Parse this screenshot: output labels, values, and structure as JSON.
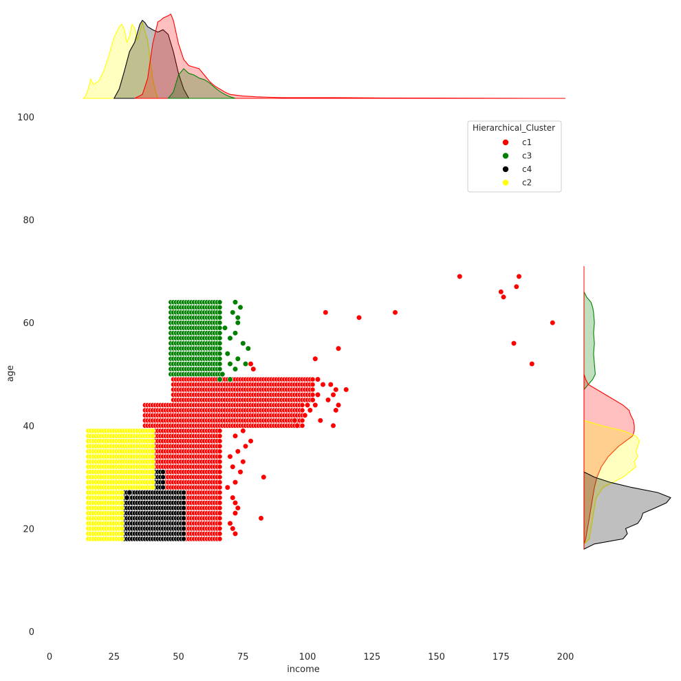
{
  "chart_data": {
    "type": "scatter",
    "xlabel": "income",
    "ylabel": "age",
    "xlim": [
      0,
      200
    ],
    "ylim": [
      0,
      100
    ],
    "x_ticks": [
      0,
      25,
      50,
      75,
      100,
      125,
      150,
      175,
      200
    ],
    "y_ticks": [
      0,
      20,
      40,
      60,
      80,
      100
    ],
    "grid": false,
    "legend": {
      "title": "Hierarchical_Cluster",
      "placement": "top-right"
    },
    "series": [
      {
        "name": "c1",
        "color": "#ff0000",
        "blocks": [
          {
            "age_min": 18,
            "age_max": 39,
            "income_min": 40,
            "income_max": 66
          },
          {
            "age_min": 40,
            "age_max": 44,
            "income_min": 37,
            "income_max": 98
          },
          {
            "age_min": 45,
            "age_max": 49,
            "income_min": 48,
            "income_max": 102
          }
        ],
        "points": [
          [
            159,
            69
          ],
          [
            182,
            69
          ],
          [
            181,
            67
          ],
          [
            175,
            66
          ],
          [
            176,
            65
          ],
          [
            107,
            62
          ],
          [
            134,
            62
          ],
          [
            120,
            61
          ],
          [
            195,
            60
          ],
          [
            180,
            56
          ],
          [
            112,
            55
          ],
          [
            103,
            53
          ],
          [
            187,
            52
          ],
          [
            115,
            47
          ],
          [
            111,
            47
          ],
          [
            110,
            46
          ],
          [
            108,
            45
          ],
          [
            109,
            48
          ],
          [
            106,
            48
          ],
          [
            104,
            49
          ],
          [
            111,
            43
          ],
          [
            112,
            44
          ],
          [
            110,
            40
          ],
          [
            96,
            40
          ],
          [
            95,
            41
          ],
          [
            99,
            42
          ],
          [
            101,
            43
          ],
          [
            103,
            44
          ],
          [
            105,
            41
          ],
          [
            100,
            44
          ],
          [
            102,
            45
          ],
          [
            104,
            46
          ],
          [
            83,
            30
          ],
          [
            82,
            22
          ],
          [
            72,
            19
          ],
          [
            71,
            20
          ],
          [
            70,
            21
          ],
          [
            72,
            23
          ],
          [
            73,
            24
          ],
          [
            72,
            25
          ],
          [
            71,
            26
          ],
          [
            72,
            29
          ],
          [
            74,
            31
          ],
          [
            75,
            33
          ],
          [
            73,
            35
          ],
          [
            76,
            36
          ],
          [
            78,
            37
          ],
          [
            72,
            38
          ],
          [
            75,
            39
          ],
          [
            78,
            52
          ],
          [
            79,
            51
          ],
          [
            70,
            34
          ],
          [
            71,
            32
          ],
          [
            69,
            28
          ]
        ]
      },
      {
        "name": "c3",
        "color": "#008000",
        "blocks": [
          {
            "age_min": 50,
            "age_max": 64,
            "income_min": 47,
            "income_max": 66
          }
        ],
        "points": [
          [
            72,
            64
          ],
          [
            74,
            63
          ],
          [
            71,
            62
          ],
          [
            73,
            61
          ],
          [
            73,
            60
          ],
          [
            68,
            59
          ],
          [
            72,
            58
          ],
          [
            70,
            57
          ],
          [
            75,
            56
          ],
          [
            77,
            55
          ],
          [
            69,
            54
          ],
          [
            73,
            53
          ],
          [
            70,
            52
          ],
          [
            76,
            52
          ],
          [
            72,
            51
          ],
          [
            67,
            50
          ],
          [
            66,
            49
          ],
          [
            70,
            49
          ]
        ]
      },
      {
        "name": "c4",
        "color": "#000000",
        "blocks": [
          {
            "age_min": 18,
            "age_max": 27,
            "income_min": 28,
            "income_max": 52
          },
          {
            "age_min": 28,
            "age_max": 31,
            "income_min": 38,
            "income_max": 44
          }
        ],
        "points": [
          [
            33,
            28
          ],
          [
            35,
            29
          ],
          [
            36,
            30
          ],
          [
            37,
            31
          ],
          [
            31,
            27
          ],
          [
            30,
            26
          ]
        ]
      },
      {
        "name": "c2",
        "color": "#ffff00",
        "blocks": [
          {
            "age_min": 18,
            "age_max": 39,
            "income_min": 15,
            "income_max": 28
          },
          {
            "age_min": 28,
            "age_max": 39,
            "income_min": 29,
            "income_max": 40
          }
        ],
        "points": []
      }
    ],
    "marginal_x_kde": [
      {
        "name": "c2",
        "color": "#ffff00",
        "points": [
          [
            13,
            0
          ],
          [
            14,
            0.03
          ],
          [
            15,
            0.12
          ],
          [
            16,
            0.25
          ],
          [
            17,
            0.18
          ],
          [
            19,
            0.22
          ],
          [
            21,
            0.35
          ],
          [
            23,
            0.55
          ],
          [
            25,
            0.78
          ],
          [
            27,
            0.92
          ],
          [
            28,
            0.95
          ],
          [
            29,
            0.88
          ],
          [
            30,
            0.72
          ],
          [
            31,
            0.8
          ],
          [
            32,
            0.95
          ],
          [
            33,
            0.9
          ],
          [
            34,
            0.75
          ],
          [
            35,
            0.85
          ],
          [
            36,
            0.98
          ],
          [
            37,
            0.85
          ],
          [
            38,
            0.75
          ],
          [
            39,
            0.5
          ],
          [
            40,
            0.25
          ],
          [
            41,
            0.1
          ],
          [
            42,
            0
          ]
        ]
      },
      {
        "name": "c4",
        "color": "#000000",
        "points": [
          [
            25,
            0
          ],
          [
            27,
            0.12
          ],
          [
            29,
            0.35
          ],
          [
            31,
            0.6
          ],
          [
            33,
            0.72
          ],
          [
            35,
            0.95
          ],
          [
            36,
            1.0
          ],
          [
            37,
            0.97
          ],
          [
            38,
            0.92
          ],
          [
            40,
            0.88
          ],
          [
            42,
            0.85
          ],
          [
            44,
            0.88
          ],
          [
            46,
            0.82
          ],
          [
            48,
            0.6
          ],
          [
            50,
            0.32
          ],
          [
            52,
            0.12
          ],
          [
            54,
            0
          ]
        ]
      },
      {
        "name": "c1",
        "color": "#ff0000",
        "points": [
          [
            33,
            0
          ],
          [
            36,
            0.05
          ],
          [
            38,
            0.25
          ],
          [
            40,
            0.7
          ],
          [
            42,
            0.98
          ],
          [
            43,
            1.0
          ],
          [
            44,
            1.03
          ],
          [
            46,
            1.06
          ],
          [
            47,
            1.08
          ],
          [
            48,
            1.0
          ],
          [
            49,
            0.85
          ],
          [
            50,
            0.7
          ],
          [
            52,
            0.5
          ],
          [
            54,
            0.42
          ],
          [
            56,
            0.4
          ],
          [
            58,
            0.38
          ],
          [
            60,
            0.3
          ],
          [
            62,
            0.22
          ],
          [
            64,
            0.16
          ],
          [
            66,
            0.12
          ],
          [
            68,
            0.08
          ],
          [
            70,
            0.05
          ],
          [
            75,
            0.03
          ],
          [
            80,
            0.02
          ],
          [
            90,
            0.01
          ],
          [
            110,
            0.01
          ],
          [
            130,
            0.005
          ],
          [
            160,
            0.003
          ],
          [
            200,
            0
          ]
        ]
      },
      {
        "name": "c3",
        "color": "#008000",
        "points": [
          [
            46,
            0
          ],
          [
            48,
            0.08
          ],
          [
            50,
            0.3
          ],
          [
            52,
            0.38
          ],
          [
            54,
            0.32
          ],
          [
            56,
            0.3
          ],
          [
            58,
            0.26
          ],
          [
            60,
            0.24
          ],
          [
            62,
            0.2
          ],
          [
            64,
            0.14
          ],
          [
            66,
            0.09
          ],
          [
            68,
            0.05
          ],
          [
            70,
            0.02
          ],
          [
            72,
            0
          ]
        ]
      }
    ],
    "marginal_y_kde": [
      {
        "name": "c3",
        "color": "#008000",
        "points": [
          [
            47,
            0
          ],
          [
            49,
            0.1
          ],
          [
            50,
            0.13
          ],
          [
            52,
            0.12
          ],
          [
            54,
            0.11
          ],
          [
            56,
            0.12
          ],
          [
            58,
            0.11
          ],
          [
            60,
            0.12
          ],
          [
            62,
            0.11
          ],
          [
            63,
            0.1
          ],
          [
            64,
            0.08
          ],
          [
            65,
            0.03
          ],
          [
            66,
            0
          ]
        ]
      },
      {
        "name": "c1",
        "color": "#ff0000",
        "points": [
          [
            17,
            0
          ],
          [
            18,
            0.02
          ],
          [
            20,
            0.04
          ],
          [
            22,
            0.06
          ],
          [
            24,
            0.08
          ],
          [
            26,
            0.1
          ],
          [
            28,
            0.12
          ],
          [
            30,
            0.15
          ],
          [
            32,
            0.2
          ],
          [
            34,
            0.28
          ],
          [
            36,
            0.4
          ],
          [
            38,
            0.56
          ],
          [
            39,
            0.58
          ],
          [
            40,
            0.58
          ],
          [
            41,
            0.57
          ],
          [
            42,
            0.54
          ],
          [
            43,
            0.52
          ],
          [
            44,
            0.45
          ],
          [
            45,
            0.35
          ],
          [
            46,
            0.25
          ],
          [
            47,
            0.15
          ],
          [
            48,
            0.05
          ],
          [
            49,
            0.02
          ],
          [
            50,
            0
          ]
        ]
      },
      {
        "name": "c2",
        "color": "#ffff00",
        "points": [
          [
            17,
            0
          ],
          [
            18,
            0.06
          ],
          [
            20,
            0.08
          ],
          [
            22,
            0.1
          ],
          [
            24,
            0.12
          ],
          [
            26,
            0.14
          ],
          [
            28,
            0.22
          ],
          [
            30,
            0.45
          ],
          [
            32,
            0.6
          ],
          [
            33,
            0.58
          ],
          [
            34,
            0.62
          ],
          [
            35,
            0.6
          ],
          [
            36,
            0.62
          ],
          [
            37,
            0.64
          ],
          [
            38,
            0.6
          ],
          [
            39,
            0.45
          ],
          [
            40,
            0.2
          ],
          [
            41,
            0
          ]
        ]
      },
      {
        "name": "c4",
        "color": "#000000",
        "points": [
          [
            16,
            0
          ],
          [
            17,
            0.12
          ],
          [
            18,
            0.45
          ],
          [
            19,
            0.5
          ],
          [
            20,
            0.48
          ],
          [
            21,
            0.62
          ],
          [
            22,
            0.66
          ],
          [
            23,
            0.68
          ],
          [
            24,
            0.82
          ],
          [
            25,
            0.95
          ],
          [
            26,
            1.0
          ],
          [
            27,
            0.85
          ],
          [
            28,
            0.55
          ],
          [
            29,
            0.3
          ],
          [
            30,
            0.12
          ],
          [
            31,
            0
          ]
        ]
      }
    ]
  }
}
